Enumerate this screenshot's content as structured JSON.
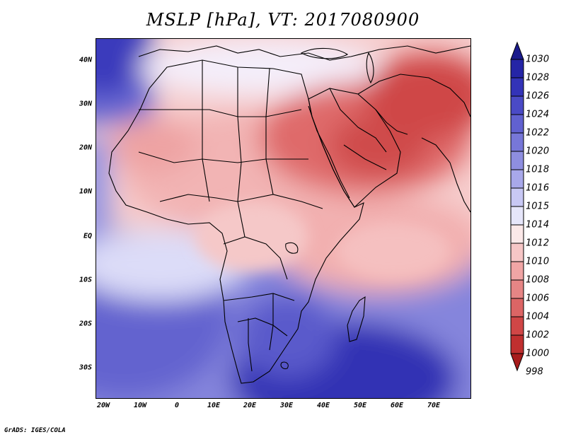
{
  "title": "MSLP [hPa], VT: 2017080900",
  "footer": "GrADS: IGES/COLA",
  "axes": {
    "y_labels": [
      "40N",
      "30N",
      "20N",
      "10N",
      "EQ",
      "10S",
      "20S",
      "30S"
    ],
    "x_labels": [
      "20W",
      "10W",
      "0",
      "10E",
      "20E",
      "30E",
      "40E",
      "50E",
      "60E",
      "70E"
    ]
  },
  "colorbar": {
    "levels": [
      "1030",
      "1028",
      "1026",
      "1024",
      "1022",
      "1020",
      "1018",
      "1016",
      "1015",
      "1014",
      "1012",
      "1010",
      "1008",
      "1006",
      "1004",
      "1002",
      "1000",
      "998"
    ],
    "colors": [
      "#1a1a8c",
      "#2525a6",
      "#3333b8",
      "#4a4ac6",
      "#6161d0",
      "#7777d8",
      "#8e8ee0",
      "#a8a8ea",
      "#c8c8f4",
      "#e6e6fa",
      "#fbe8e8",
      "#f6c6c6",
      "#f0a5a5",
      "#e68585",
      "#dc6565",
      "#d04646",
      "#c02f2f",
      "#a81c1c"
    ]
  },
  "colors": {
    "high_pressure": "#2525a6",
    "low_pressure": "#c02f2f",
    "neutral": "#ffffff",
    "border": "#000000"
  }
}
